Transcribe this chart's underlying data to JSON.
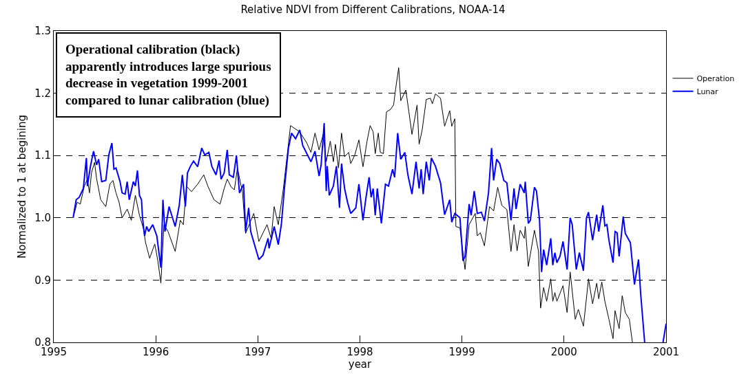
{
  "chart_data": {
    "type": "line",
    "title": "Relative NDVI from Different Calibrations, NOAA-14",
    "xlabel": "year",
    "ylabel": "Normalized to 1 at begining",
    "annotations": [
      "Operational calibration (black)\napparently introduces large spurious\ndecrease in vegetation 1999-2001\ncompared to lunar calibration (blue)"
    ],
    "xlim": [
      1995,
      2001
    ],
    "xticks": [
      1995,
      1996,
      1997,
      1998,
      1999,
      2000,
      2001
    ],
    "ylim": [
      0.8,
      1.3
    ],
    "yticks": [
      0.8,
      0.9,
      {
        "value": 1.0,
        "label": "1.0"
      },
      1.1,
      1.2,
      1.3
    ],
    "grid": "y",
    "legend": "top right",
    "line_style": "solid",
    "marker": "none",
    "series": [
      {
        "name": "Operation",
        "color": "#000000",
        "x": [
          1995.19,
          1995.23,
          1995.26,
          1995.3,
          1995.33,
          1995.35,
          1995.37,
          1995.4,
          1995.42,
          1995.46,
          1995.51,
          1995.55,
          1995.58,
          1995.61,
          1995.64,
          1995.67,
          1995.72,
          1995.76,
          1995.8,
          1995.84,
          1995.88,
          1995.9,
          1995.94,
          1995.99,
          1996.02,
          1996.05,
          1996.08,
          1996.12,
          1996.19,
          1996.24,
          1996.27,
          1996.3,
          1996.35,
          1996.41,
          1996.47,
          1996.51,
          1996.57,
          1996.63,
          1996.67,
          1996.7,
          1996.74,
          1996.77,
          1996.8,
          1996.85,
          1996.88,
          1996.96,
          1997.01,
          1997.09,
          1997.13,
          1997.16,
          1997.2,
          1997.25,
          1997.32,
          1997.41,
          1997.48,
          1997.52,
          1997.56,
          1997.6,
          1997.64,
          1997.67,
          1997.71,
          1997.74,
          1997.76,
          1997.79,
          1997.82,
          1997.85,
          1997.89,
          1997.91,
          1997.95,
          1997.99,
          1998.03,
          1998.07,
          1998.1,
          1998.13,
          1998.15,
          1998.18,
          1998.2,
          1998.23,
          1998.26,
          1998.3,
          1998.33,
          1998.35,
          1998.38,
          1998.4,
          1998.45,
          1998.48,
          1998.51,
          1998.56,
          1998.58,
          1998.61,
          1998.65,
          1998.69,
          1998.71,
          1998.74,
          1998.79,
          1998.83,
          1998.88,
          1998.9,
          1998.93,
          1998.94,
          1998.98,
          1999.03,
          1999.07,
          1999.13,
          1999.15,
          1999.18,
          1999.22,
          1999.27,
          1999.31,
          1999.35,
          1999.39,
          1999.44,
          1999.48,
          1999.51,
          1999.54,
          1999.57,
          1999.61,
          1999.62,
          1999.65,
          1999.71,
          1999.75,
          1999.77,
          1999.8,
          1999.83,
          1999.87,
          1999.89,
          1999.91,
          1999.93,
          1999.99,
          2000.03,
          2000.06,
          2000.11,
          2000.14,
          2000.19,
          2000.24,
          2000.28,
          2000.32,
          2000.34,
          2000.37,
          2000.4,
          2000.44,
          2000.48,
          2000.5,
          2000.54,
          2000.57,
          2000.6,
          2000.64,
          2000.67
        ],
        "values": [
          1.0,
          1.025,
          1.022,
          1.051,
          1.062,
          1.04,
          1.072,
          1.089,
          1.063,
          1.029,
          1.018,
          1.054,
          1.06,
          1.04,
          1.025,
          1.0,
          1.014,
          0.996,
          1.036,
          1.004,
          0.982,
          0.96,
          0.935,
          0.958,
          0.931,
          0.895,
          0.989,
          0.978,
          0.946,
          0.996,
          0.989,
          1.051,
          1.042,
          1.054,
          1.069,
          1.051,
          1.029,
          1.022,
          1.047,
          1.062,
          1.049,
          1.045,
          1.08,
          1.04,
          0.975,
          1.007,
          0.962,
          0.989,
          0.967,
          1.018,
          0.989,
          1.047,
          1.148,
          1.138,
          1.12,
          1.105,
          1.136,
          1.109,
          1.134,
          1.09,
          1.123,
          1.09,
          1.118,
          1.08,
          1.136,
          1.098,
          1.105,
          1.087,
          1.101,
          1.125,
          1.082,
          1.123,
          1.148,
          1.138,
          1.103,
          1.136,
          1.105,
          1.103,
          1.17,
          1.174,
          1.181,
          1.207,
          1.241,
          1.188,
          1.205,
          1.17,
          1.134,
          1.181,
          1.118,
          1.141,
          1.19,
          1.192,
          1.183,
          1.199,
          1.192,
          1.147,
          1.172,
          1.147,
          1.159,
          0.986,
          0.984,
          0.917,
          0.989,
          1.007,
          0.971,
          0.976,
          0.955,
          1.018,
          1.011,
          1.049,
          1.02,
          1.013,
          0.946,
          0.989,
          0.947,
          0.98,
          0.967,
          0.986,
          0.922,
          0.98,
          0.946,
          0.855,
          0.888,
          0.866,
          0.902,
          0.866,
          0.88,
          0.866,
          0.891,
          0.848,
          0.913,
          0.837,
          0.853,
          0.826,
          0.902,
          0.862,
          0.895,
          0.87,
          0.897,
          0.866,
          0.837,
          0.806,
          0.851,
          0.822,
          0.875,
          0.848,
          0.837,
          0.8
        ]
      },
      {
        "name": "Lunar",
        "color": "#0000ff",
        "x": [
          1995.19,
          1995.22,
          1995.25,
          1995.29,
          1995.32,
          1995.33,
          1995.36,
          1995.39,
          1995.42,
          1995.44,
          1995.47,
          1995.51,
          1995.54,
          1995.57,
          1995.59,
          1995.61,
          1995.65,
          1995.67,
          1995.7,
          1995.72,
          1995.74,
          1995.78,
          1995.8,
          1995.82,
          1995.84,
          1995.86,
          1995.87,
          1995.89,
          1995.91,
          1995.93,
          1995.97,
          1996.01,
          1996.05,
          1996.07,
          1996.09,
          1996.13,
          1996.19,
          1996.23,
          1996.26,
          1996.29,
          1996.31,
          1996.34,
          1996.37,
          1996.41,
          1996.45,
          1996.48,
          1996.52,
          1996.55,
          1996.59,
          1996.62,
          1996.64,
          1996.67,
          1996.7,
          1996.72,
          1996.76,
          1996.79,
          1996.82,
          1996.86,
          1996.88,
          1996.91,
          1996.93,
          1997.01,
          1997.05,
          1997.1,
          1997.11,
          1997.16,
          1997.2,
          1997.23,
          1997.26,
          1997.3,
          1997.33,
          1997.37,
          1997.41,
          1997.44,
          1997.52,
          1997.56,
          1997.6,
          1997.62,
          1997.65,
          1997.67,
          1997.68,
          1997.7,
          1997.74,
          1997.77,
          1997.8,
          1997.82,
          1997.85,
          1997.88,
          1997.91,
          1997.96,
          1997.99,
          1998.03,
          1998.06,
          1998.09,
          1998.11,
          1998.13,
          1998.15,
          1998.17,
          1998.21,
          1998.25,
          1998.28,
          1998.32,
          1998.34,
          1998.37,
          1998.4,
          1998.44,
          1998.47,
          1998.51,
          1998.55,
          1998.58,
          1998.6,
          1998.62,
          1998.65,
          1998.68,
          1998.7,
          1998.74,
          1998.79,
          1998.83,
          1998.88,
          1998.9,
          1998.93,
          1998.98,
          1999.01,
          1999.03,
          1999.07,
          1999.09,
          1999.12,
          1999.15,
          1999.19,
          1999.22,
          1999.26,
          1999.29,
          1999.31,
          1999.34,
          1999.37,
          1999.41,
          1999.44,
          1999.48,
          1999.51,
          1999.53,
          1999.57,
          1999.61,
          1999.62,
          1999.65,
          1999.67,
          1999.71,
          1999.73,
          1999.76,
          1999.78,
          1999.8,
          1999.83,
          1999.87,
          1999.89,
          1999.91,
          1999.93,
          1999.96,
          1999.99,
          2000.03,
          2000.06,
          2000.08,
          2000.12,
          2000.15,
          2000.19,
          2000.22,
          2000.24,
          2000.28,
          2000.32,
          2000.34,
          2000.38,
          2000.4,
          2000.42,
          2000.44,
          2000.48,
          2000.5,
          2000.52,
          2000.54,
          2000.58,
          2000.6,
          2000.65,
          2000.69,
          2000.73,
          2000.75,
          2000.79,
          2000.88,
          2000.97,
          2001.0
        ],
        "values": [
          1.0,
          1.029,
          1.033,
          1.047,
          1.096,
          1.051,
          1.083,
          1.107,
          1.085,
          1.094,
          1.058,
          1.06,
          1.101,
          1.12,
          1.078,
          1.08,
          1.058,
          1.04,
          1.038,
          1.058,
          1.029,
          1.058,
          1.051,
          1.076,
          1.036,
          1.029,
          1.0,
          0.971,
          0.986,
          0.978,
          0.989,
          0.971,
          0.92,
          1.029,
          0.978,
          1.018,
          0.986,
          1.02,
          1.069,
          1.018,
          1.072,
          1.083,
          1.091,
          1.082,
          1.112,
          1.101,
          1.105,
          1.082,
          1.069,
          1.092,
          1.062,
          1.072,
          1.109,
          1.069,
          1.065,
          1.1,
          1.04,
          1.054,
          0.978,
          1.016,
          0.978,
          0.933,
          0.94,
          0.967,
          0.951,
          0.986,
          0.957,
          0.989,
          1.047,
          1.112,
          1.136,
          1.127,
          1.141,
          1.116,
          1.09,
          1.107,
          1.067,
          1.085,
          1.152,
          1.043,
          1.083,
          1.036,
          1.051,
          1.083,
          1.016,
          1.087,
          1.047,
          1.024,
          1.007,
          1.016,
          1.054,
          0.996,
          1.033,
          1.065,
          1.033,
          1.047,
          1.004,
          1.047,
          0.991,
          1.054,
          1.051,
          1.078,
          1.065,
          1.136,
          1.094,
          1.105,
          1.069,
          1.038,
          1.09,
          1.047,
          1.078,
          1.038,
          1.09,
          1.06,
          1.096,
          1.083,
          1.056,
          1.005,
          1.029,
          0.993,
          1.007,
          1.0,
          0.931,
          0.938,
          1.022,
          1.004,
          1.043,
          1.007,
          1.009,
          0.995,
          1.04,
          1.112,
          1.06,
          1.094,
          1.087,
          1.06,
          1.056,
          0.996,
          1.047,
          1.014,
          1.054,
          1.04,
          1.058,
          0.991,
          0.996,
          1.049,
          1.043,
          0.996,
          0.913,
          0.949,
          0.924,
          0.967,
          0.924,
          0.944,
          0.928,
          0.938,
          0.962,
          0.917,
          1.0,
          0.989,
          0.917,
          0.944,
          0.915,
          1.0,
          1.009,
          0.964,
          1.005,
          0.978,
          1.02,
          0.987,
          0.989,
          0.964,
          0.928,
          0.978,
          0.976,
          0.938,
          1.002,
          0.975,
          0.96,
          0.893,
          0.933,
          0.88,
          0.8,
          null,
          0.8,
          0.83
        ]
      }
    ]
  }
}
